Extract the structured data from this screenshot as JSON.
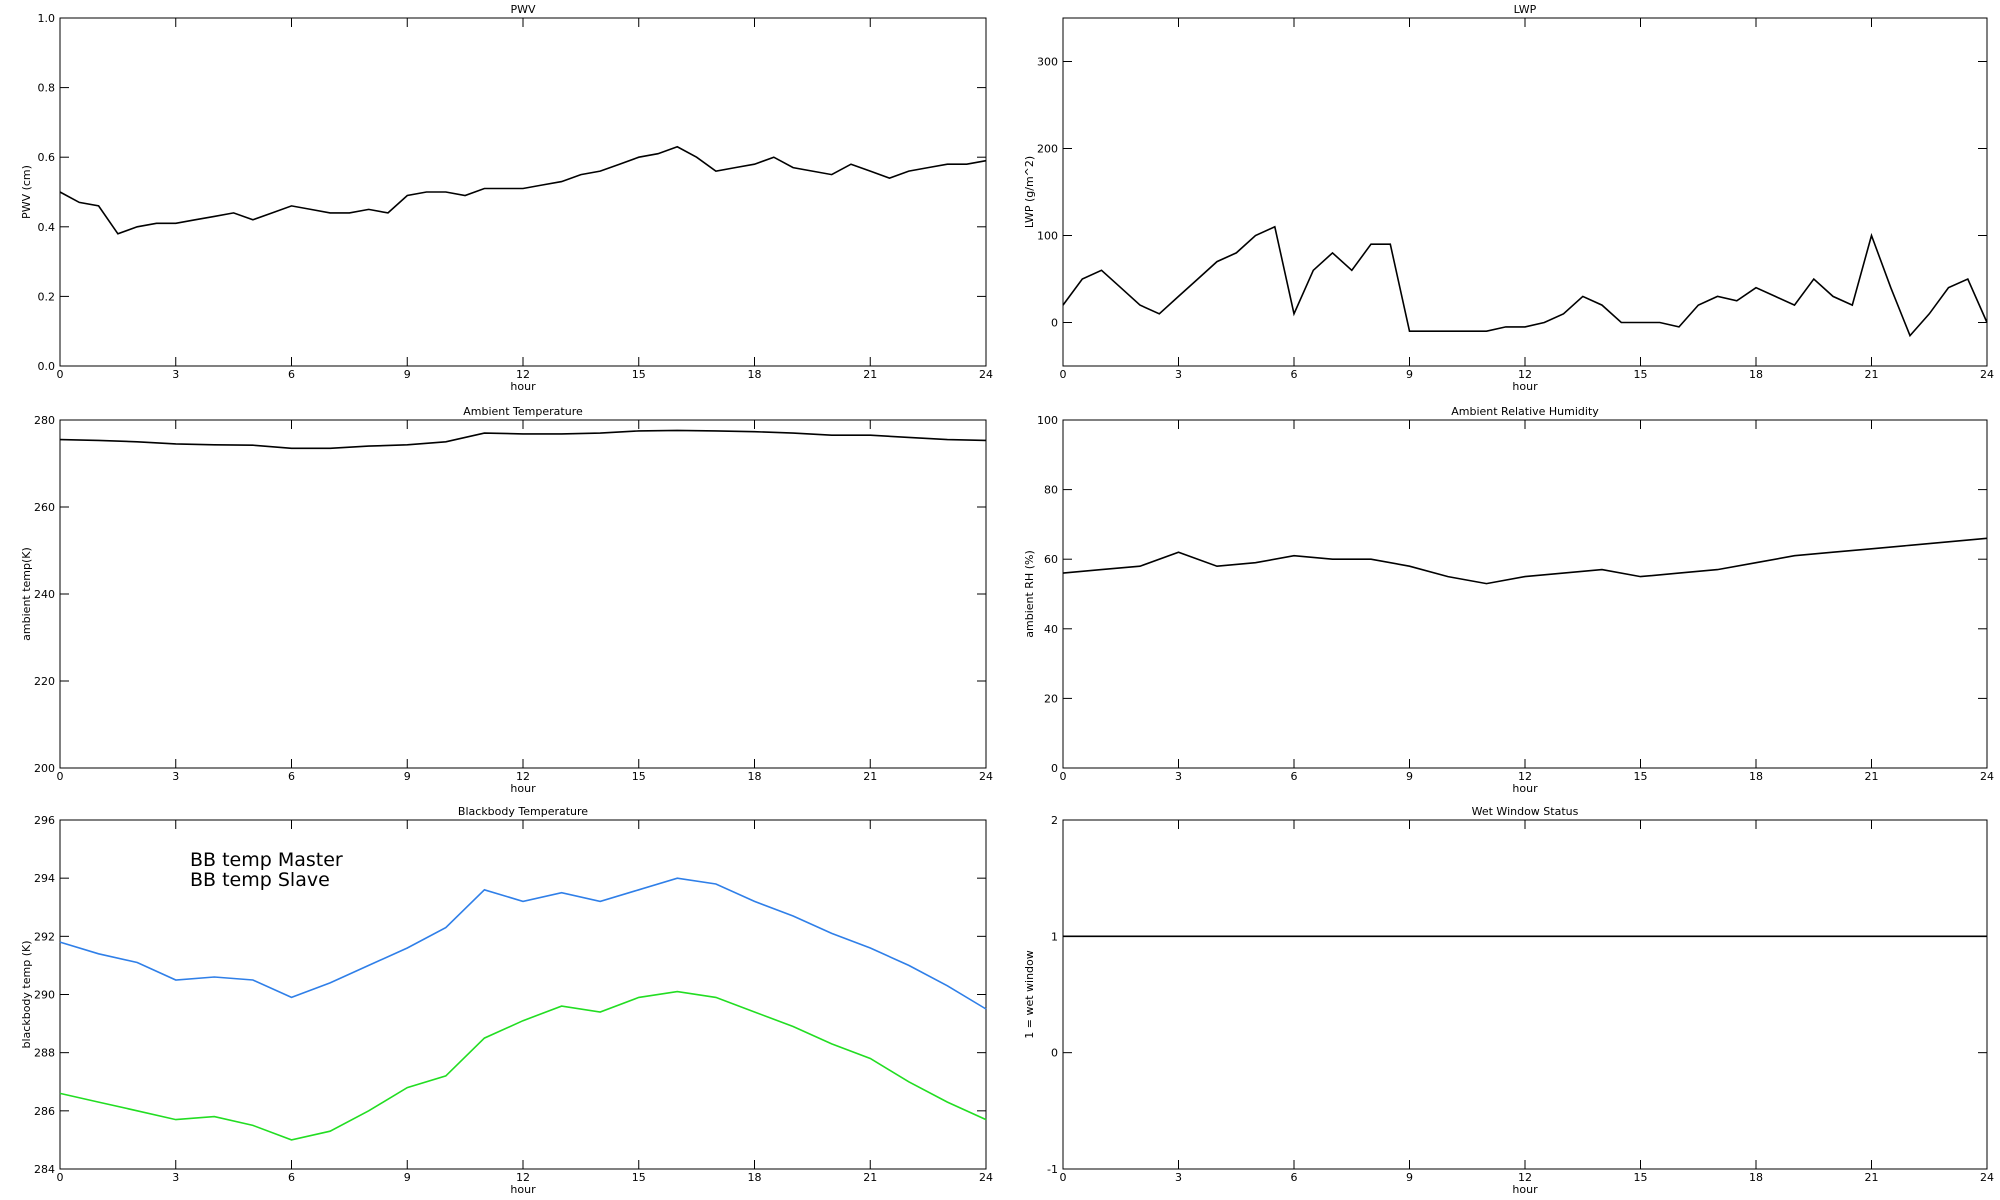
{
  "chart_data": [
    {
      "type": "line",
      "title": "PWV",
      "xlabel": "hour",
      "ylabel": "PWV (cm)",
      "xlim": [
        0,
        24
      ],
      "xticks": [
        0,
        3,
        6,
        9,
        12,
        15,
        18,
        21,
        24
      ],
      "ylim": [
        0,
        1
      ],
      "yticks": [
        {
          "value": 0,
          "label": "0.0"
        },
        0.2,
        0.4,
        0.6,
        0.8,
        {
          "value": 1,
          "label": "1.0"
        }
      ],
      "color": "#000000",
      "x": [
        0,
        0.5,
        1,
        1.5,
        2,
        2.5,
        3,
        3.5,
        4,
        4.5,
        5,
        5.5,
        6,
        6.5,
        7,
        7.5,
        8,
        8.5,
        9,
        9.5,
        10,
        10.5,
        11,
        11.5,
        12,
        12.5,
        13,
        13.5,
        14,
        14.5,
        15,
        15.5,
        16,
        16.5,
        17,
        17.5,
        18,
        18.5,
        19,
        19.5,
        20,
        20.5,
        21,
        21.5,
        22,
        22.5,
        23,
        23.5,
        24
      ],
      "values": [
        0.5,
        0.47,
        0.46,
        0.38,
        0.4,
        0.41,
        0.41,
        0.42,
        0.43,
        0.44,
        0.42,
        0.44,
        0.46,
        0.45,
        0.44,
        0.44,
        0.45,
        0.44,
        0.49,
        0.5,
        0.5,
        0.49,
        0.51,
        0.51,
        0.51,
        0.52,
        0.53,
        0.55,
        0.56,
        0.58,
        0.6,
        0.61,
        0.63,
        0.6,
        0.56,
        0.57,
        0.58,
        0.6,
        0.57,
        0.56,
        0.55,
        0.58,
        0.56,
        0.54,
        0.56,
        0.57,
        0.58,
        0.58,
        0.59
      ]
    },
    {
      "type": "line",
      "title": "LWP",
      "xlabel": "hour",
      "ylabel": "LWP (g/m^2)",
      "xlim": [
        0,
        24
      ],
      "xticks": [
        0,
        3,
        6,
        9,
        12,
        15,
        18,
        21,
        24
      ],
      "ylim": [
        -50,
        350
      ],
      "yticks": [
        0,
        100,
        200,
        300
      ],
      "color": "#000000",
      "x": [
        0,
        0.5,
        1,
        1.5,
        2,
        2.5,
        3,
        3.5,
        4,
        4.5,
        5,
        5.5,
        6,
        6.5,
        7,
        7.5,
        8,
        8.5,
        9,
        9.5,
        10,
        10.5,
        11,
        11.5,
        12,
        12.5,
        13,
        13.5,
        14,
        14.5,
        15,
        15.5,
        16,
        16.5,
        17,
        17.5,
        18,
        18.5,
        19,
        19.5,
        20,
        20.5,
        21,
        21.5,
        22,
        22.5,
        23,
        23.5,
        24
      ],
      "values": [
        20,
        50,
        60,
        40,
        20,
        10,
        30,
        50,
        70,
        80,
        100,
        110,
        10,
        60,
        80,
        60,
        90,
        90,
        -10,
        -10,
        -10,
        -10,
        -10,
        -5,
        -5,
        0,
        10,
        30,
        20,
        0,
        0,
        0,
        -5,
        20,
        30,
        25,
        40,
        30,
        20,
        50,
        30,
        20,
        100,
        40,
        -15,
        10,
        40,
        50,
        0
      ]
    },
    {
      "type": "line",
      "title": "Ambient Temperature",
      "xlabel": "hour",
      "ylabel": "ambient temp(K)",
      "xlim": [
        0,
        24
      ],
      "xticks": [
        0,
        3,
        6,
        9,
        12,
        15,
        18,
        21,
        24
      ],
      "ylim": [
        200,
        280
      ],
      "yticks": [
        200,
        220,
        240,
        260,
        280
      ],
      "color": "#000000",
      "x": [
        0,
        1,
        2,
        3,
        4,
        5,
        6,
        7,
        8,
        9,
        10,
        11,
        12,
        13,
        14,
        15,
        16,
        17,
        18,
        19,
        20,
        21,
        22,
        23,
        24
      ],
      "values": [
        275.5,
        275.3,
        275,
        274.5,
        274.3,
        274.2,
        273.5,
        273.5,
        274,
        274.3,
        275,
        277,
        276.8,
        276.8,
        277,
        277.5,
        277.6,
        277.5,
        277.3,
        277,
        276.5,
        276.5,
        276,
        275.5,
        275.3
      ]
    },
    {
      "type": "line",
      "title": "Ambient Relative Humidity",
      "xlabel": "hour",
      "ylabel": "ambient RH (%)",
      "xlim": [
        0,
        24
      ],
      "xticks": [
        0,
        3,
        6,
        9,
        12,
        15,
        18,
        21,
        24
      ],
      "ylim": [
        0,
        100
      ],
      "yticks": [
        0,
        20,
        40,
        60,
        80,
        100
      ],
      "color": "#000000",
      "x": [
        0,
        1,
        2,
        3,
        4,
        5,
        6,
        7,
        8,
        9,
        10,
        11,
        12,
        13,
        14,
        15,
        16,
        17,
        18,
        19,
        20,
        21,
        22,
        23,
        24
      ],
      "values": [
        56,
        57,
        58,
        62,
        58,
        59,
        61,
        60,
        60,
        58,
        55,
        53,
        55,
        56,
        57,
        55,
        56,
        57,
        59,
        61,
        62,
        63,
        64,
        65,
        66
      ]
    },
    {
      "type": "line",
      "title": "Blackbody Temperature",
      "xlabel": "hour",
      "ylabel": "blackbody temp (K)",
      "xlim": [
        0,
        24
      ],
      "xticks": [
        0,
        3,
        6,
        9,
        12,
        15,
        18,
        21,
        24
      ],
      "ylim": [
        284,
        296
      ],
      "yticks": [
        284,
        286,
        288,
        290,
        292,
        294,
        296
      ],
      "x": [
        0,
        1,
        2,
        3,
        4,
        5,
        6,
        7,
        8,
        9,
        10,
        11,
        12,
        13,
        14,
        15,
        16,
        17,
        18,
        19,
        20,
        21,
        22,
        23,
        24
      ],
      "series": [
        {
          "name": "BB temp Master",
          "color": "#2f7fe8",
          "values": [
            291.8,
            291.4,
            291.1,
            290.5,
            290.6,
            290.5,
            289.9,
            290.4,
            291.0,
            291.6,
            292.3,
            293.6,
            293.2,
            293.5,
            293.2,
            293.6,
            294.0,
            293.8,
            293.2,
            292.7,
            292.1,
            291.6,
            291.0,
            290.3,
            289.5
          ]
        },
        {
          "name": "BB temp Slave",
          "color": "#22dd22",
          "values": [
            286.6,
            286.3,
            286.0,
            285.7,
            285.8,
            285.5,
            285.0,
            285.3,
            286.0,
            286.8,
            287.2,
            288.5,
            289.1,
            289.6,
            289.4,
            289.9,
            290.1,
            289.9,
            289.4,
            288.9,
            288.3,
            287.8,
            287.0,
            286.3,
            285.7
          ]
        }
      ]
    },
    {
      "type": "line",
      "title": "Wet Window Status",
      "xlabel": "hour",
      "ylabel": "1 = wet window",
      "xlim": [
        0,
        24
      ],
      "xticks": [
        0,
        3,
        6,
        9,
        12,
        15,
        18,
        21,
        24
      ],
      "ylim": [
        -1,
        2
      ],
      "yticks": [
        -1,
        0,
        1,
        2
      ],
      "color": "#000000",
      "x": [
        0,
        24
      ],
      "values": [
        1,
        1
      ]
    }
  ]
}
